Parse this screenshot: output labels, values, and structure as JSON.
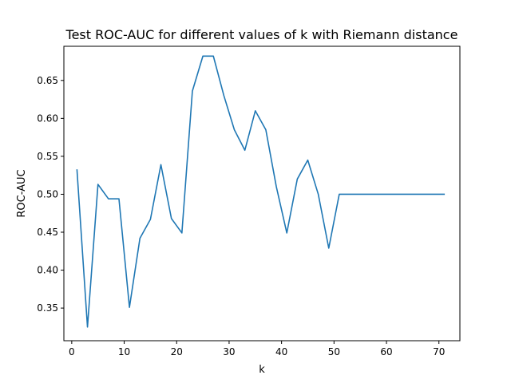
{
  "chart_data": {
    "type": "line",
    "title": "Test ROC-AUC for different values of k with Riemann distance",
    "xlabel": "k",
    "ylabel": "ROC-AUC",
    "xlim": [
      -1.5,
      74
    ],
    "ylim": [
      0.307,
      0.695
    ],
    "xticks": [
      0,
      10,
      20,
      30,
      40,
      50,
      60,
      70
    ],
    "yticks": [
      0.35,
      0.4,
      0.45,
      0.5,
      0.55,
      0.6,
      0.65
    ],
    "ytick_labels": [
      "0.35",
      "0.40",
      "0.45",
      "0.50",
      "0.55",
      "0.60",
      "0.65"
    ],
    "grid": false,
    "line_color": "#1f77b4",
    "series": [
      {
        "x": [
          1,
          3,
          5,
          7,
          9,
          11,
          13,
          15,
          17,
          19,
          21,
          23,
          25,
          27,
          29,
          31,
          33,
          35,
          37,
          39,
          41,
          43,
          45,
          47,
          49,
          51,
          53,
          55,
          57,
          59,
          61,
          63,
          65,
          67,
          69,
          71
        ],
        "values": [
          0.532,
          0.325,
          0.513,
          0.494,
          0.494,
          0.351,
          0.442,
          0.467,
          0.539,
          0.468,
          0.449,
          0.636,
          0.682,
          0.682,
          0.63,
          0.585,
          0.558,
          0.61,
          0.585,
          0.51,
          0.449,
          0.52,
          0.545,
          0.5,
          0.429,
          0.5,
          0.5,
          0.5,
          0.5,
          0.5,
          0.5,
          0.5,
          0.5,
          0.5,
          0.5,
          0.5
        ]
      }
    ]
  }
}
